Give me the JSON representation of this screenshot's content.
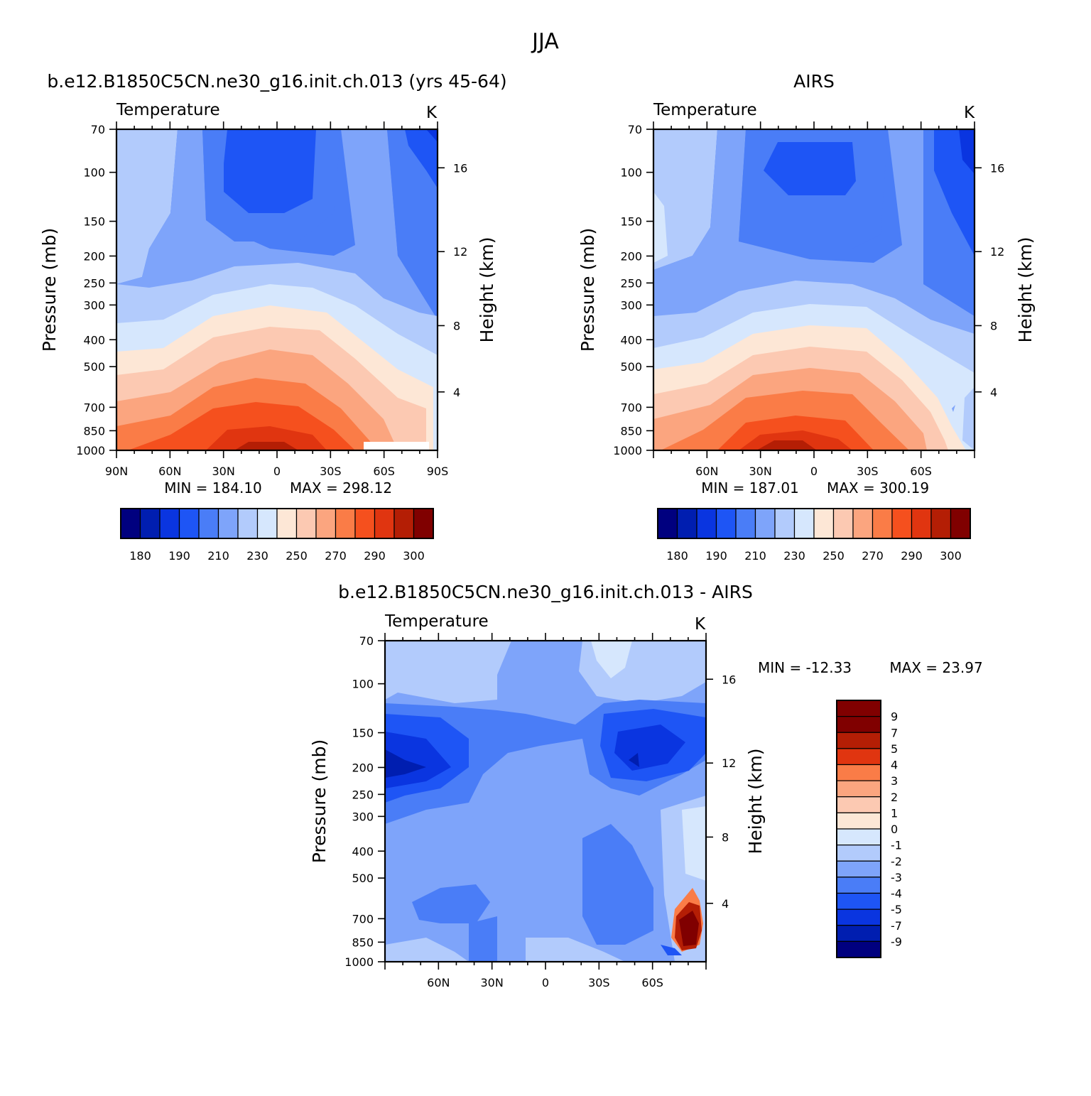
{
  "figure": {
    "season": "JJA",
    "variable": "Temperature",
    "units": "K",
    "left_axis_title": "Pressure (mb)",
    "right_axis_title": "Height (km)"
  },
  "chart_data": [
    {
      "type": "heatmap",
      "title": "b.e12.B1850C5CN.ne30_g16.init.ch.013 (yrs 45-64)",
      "variable": "Temperature",
      "units": "K",
      "x_tick_labels": [
        "90N",
        "60N",
        "30N",
        "0",
        "30S",
        "60S",
        "90S"
      ],
      "x_range": [
        90,
        -90
      ],
      "y_tick_labels": [
        "70",
        "100",
        "150",
        "200",
        "250",
        "300",
        "400",
        "500",
        "700",
        "850",
        "1000"
      ],
      "y_range_mb": [
        1000,
        70
      ],
      "y_scale": "log",
      "height_tick_labels": [
        "4",
        "8",
        "12",
        "16"
      ],
      "min_label": "MIN = 184.10",
      "max_label": "MAX = 298.12",
      "min": 184.1,
      "max": 298.12,
      "colorbar": {
        "orientation": "horizontal",
        "labels": [
          "180",
          "190",
          "210",
          "230",
          "250",
          "270",
          "290",
          "300"
        ],
        "colors": [
          "#00007f",
          "#001eb0",
          "#0a35e0",
          "#1e55f5",
          "#4a7df7",
          "#7ea4fa",
          "#b2cbfc",
          "#d6e7fd",
          "#fde7d6",
          "#fcc9b2",
          "#fba57f",
          "#fa7c47",
          "#f5501e",
          "#e03510",
          "#b41e05",
          "#800000"
        ]
      }
    },
    {
      "type": "heatmap",
      "title": "AIRS",
      "variable": "Temperature",
      "units": "K",
      "x_tick_labels": [
        "60N",
        "30N",
        "0",
        "30S",
        "60S"
      ],
      "x_range": [
        90,
        -90
      ],
      "y_tick_labels": [
        "70",
        "100",
        "150",
        "200",
        "250",
        "300",
        "400",
        "500",
        "700",
        "850",
        "1000"
      ],
      "y_range_mb": [
        1000,
        70
      ],
      "y_scale": "log",
      "height_tick_labels": [
        "4",
        "8",
        "12",
        "16"
      ],
      "min_label": "MIN = 187.01",
      "max_label": "MAX = 300.19",
      "min": 187.01,
      "max": 300.19,
      "colorbar": {
        "orientation": "horizontal",
        "labels": [
          "180",
          "190",
          "210",
          "230",
          "250",
          "270",
          "290",
          "300"
        ],
        "colors": [
          "#00007f",
          "#001eb0",
          "#0a35e0",
          "#1e55f5",
          "#4a7df7",
          "#7ea4fa",
          "#b2cbfc",
          "#d6e7fd",
          "#fde7d6",
          "#fcc9b2",
          "#fba57f",
          "#fa7c47",
          "#f5501e",
          "#e03510",
          "#b41e05",
          "#800000"
        ]
      }
    },
    {
      "type": "heatmap",
      "title": "b.e12.B1850C5CN.ne30_g16.init.ch.013 - AIRS",
      "variable": "Temperature",
      "units": "K",
      "x_tick_labels": [
        "60N",
        "30N",
        "0",
        "30S",
        "60S"
      ],
      "x_range": [
        90,
        -90
      ],
      "y_tick_labels": [
        "70",
        "100",
        "150",
        "200",
        "250",
        "300",
        "400",
        "500",
        "700",
        "850",
        "1000"
      ],
      "y_range_mb": [
        1000,
        70
      ],
      "y_scale": "log",
      "height_tick_labels": [
        "4",
        "8",
        "12",
        "16"
      ],
      "min_label": "MIN = -12.33",
      "max_label": "MAX = 23.97",
      "min": -12.33,
      "max": 23.97,
      "colorbar": {
        "orientation": "vertical",
        "labels": [
          "9",
          "7",
          "5",
          "4",
          "3",
          "2",
          "1",
          "0",
          "-1",
          "-2",
          "-3",
          "-4",
          "-5",
          "-7",
          "-9"
        ],
        "colors": [
          "#800000",
          "#b41e05",
          "#e03510",
          "#fa7c47",
          "#fba57f",
          "#fcc9b2",
          "#fde7d6",
          "#d6e7fd",
          "#b2cbfc",
          "#7ea4fa",
          "#4a7df7",
          "#1e55f5",
          "#0a35e0",
          "#001eb0",
          "#00007f"
        ]
      }
    }
  ]
}
